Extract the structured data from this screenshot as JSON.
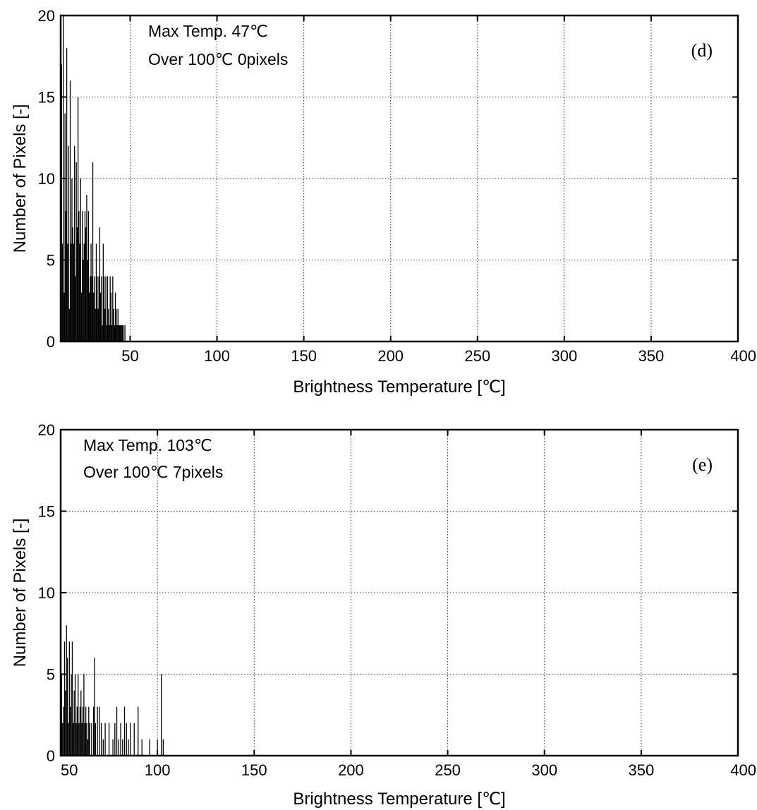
{
  "chart_data": [
    {
      "type": "bar",
      "panel_label": "(d)",
      "xlabel": "Brightness Temperature [℃]",
      "ylabel": "Number of Pixels [-]",
      "xlim": [
        10,
        400
      ],
      "ylim": [
        0,
        20
      ],
      "xticks": [
        50,
        100,
        150,
        200,
        250,
        300,
        350,
        400
      ],
      "yticks": [
        0,
        5,
        10,
        15,
        20
      ],
      "grid": true,
      "annotations": [
        "Max Temp.  47℃",
        "Over 100℃ 0pixels"
      ],
      "color": "#000000",
      "x": [
        10.5,
        11,
        11.5,
        12,
        12.5,
        13,
        13.5,
        14,
        14.5,
        15,
        15.5,
        16,
        16.5,
        17,
        17.5,
        18,
        18.5,
        19,
        19.5,
        20,
        20.5,
        21,
        21.5,
        22,
        22.5,
        23,
        23.5,
        24,
        24.5,
        25,
        25.5,
        26,
        26.5,
        27,
        27.5,
        28,
        28.5,
        29,
        29.5,
        30,
        30.5,
        31,
        31.5,
        32,
        32.5,
        33,
        33.5,
        34,
        34.5,
        35,
        35.5,
        36,
        36.5,
        37,
        37.5,
        38,
        38.5,
        39,
        39.5,
        40,
        40.5,
        41,
        41.5,
        42,
        42.5,
        43,
        43.5,
        44,
        44.5,
        45,
        45.5,
        46,
        47
      ],
      "values": [
        17,
        6,
        20,
        3,
        14,
        8,
        18,
        6,
        12,
        2,
        16,
        6,
        10,
        7,
        6,
        12,
        4,
        11,
        7,
        15,
        8,
        6,
        10,
        3,
        8,
        5,
        6,
        8,
        7,
        9,
        5,
        8,
        3,
        4,
        6,
        4,
        11,
        3,
        4,
        2,
        6,
        4,
        2,
        4,
        7,
        3,
        4,
        1,
        6,
        4,
        2,
        4,
        1,
        4,
        2,
        1,
        4,
        3,
        1,
        4,
        2,
        1,
        3,
        2,
        1,
        2,
        1,
        1,
        1,
        1,
        1,
        1,
        1
      ]
    },
    {
      "type": "bar",
      "panel_label": "(e)",
      "xlabel": "Brightness Temperature [℃]",
      "ylabel": "Number of Pixels [-]",
      "xlim": [
        50,
        400
      ],
      "ylim": [
        0,
        20
      ],
      "xticks": [
        50,
        100,
        150,
        200,
        250,
        300,
        350,
        400
      ],
      "yticks": [
        0,
        5,
        10,
        15,
        20
      ],
      "grid": true,
      "annotations": [
        "Max Temp.  103℃",
        "Over 100℃ 7pixels"
      ],
      "color": "#000000",
      "x": [
        50.5,
        51,
        51.5,
        52,
        52.5,
        53,
        53.5,
        54,
        54.5,
        55,
        55.5,
        56,
        56.5,
        57,
        57.5,
        58,
        58.5,
        59,
        59.5,
        60,
        60.5,
        61,
        61.5,
        62,
        62.5,
        63,
        63.5,
        64,
        64.5,
        65,
        66,
        67,
        67.5,
        68,
        69,
        70,
        71,
        72,
        73,
        75,
        77,
        78,
        79,
        80,
        81,
        82,
        83,
        84,
        85,
        86,
        88,
        90,
        92,
        96,
        100,
        102,
        103
      ],
      "values": [
        5,
        2,
        3,
        7,
        4,
        8,
        6,
        2,
        7,
        3,
        5,
        7,
        2,
        4,
        5,
        2,
        3,
        5,
        2,
        3,
        4,
        2,
        3,
        5,
        2,
        3,
        2,
        1,
        3,
        2,
        2,
        3,
        6,
        2,
        3,
        3,
        2,
        1,
        2,
        2,
        1,
        2,
        3,
        1,
        2,
        1,
        3,
        2,
        1,
        2,
        2,
        3,
        1,
        1,
        1,
        5,
        1
      ]
    }
  ]
}
